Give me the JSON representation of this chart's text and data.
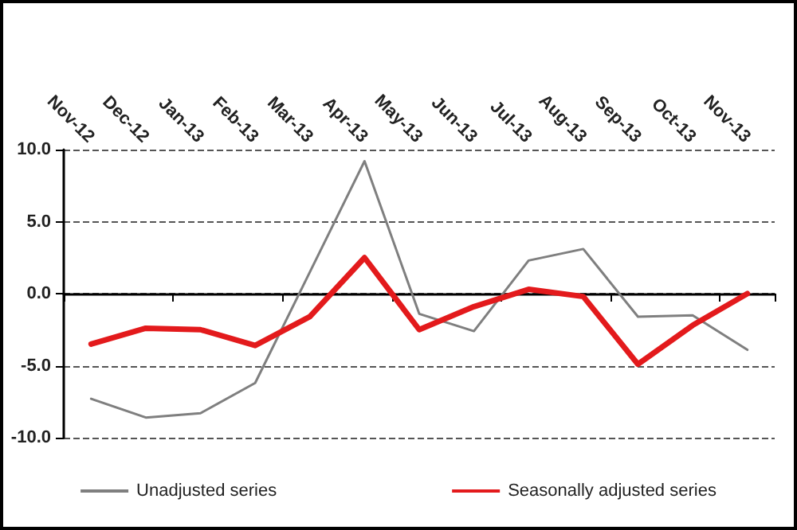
{
  "chart_data": {
    "type": "line",
    "categories": [
      "Nov-12",
      "Dec-12",
      "Jan-13",
      "Feb-13",
      "Mar-13",
      "Apr-13",
      "May-13",
      "Jun-13",
      "Jul-13",
      "Aug-13",
      "Sep-13",
      "Oct-13",
      "Nov-13"
    ],
    "series": [
      {
        "name": "Unadjusted series",
        "color": "#7f7f7f",
        "values": [
          -7.3,
          -8.6,
          -8.3,
          -6.2,
          1.5,
          9.2,
          -1.4,
          -2.6,
          2.3,
          3.1,
          -1.6,
          -1.5,
          -3.9
        ]
      },
      {
        "name": "Seasonally adjusted series",
        "color": "#e31a1c",
        "values": [
          -3.5,
          -2.4,
          -2.5,
          -3.6,
          -1.6,
          2.5,
          -2.5,
          -0.9,
          0.3,
          -0.2,
          -4.9,
          -2.2,
          0.0
        ]
      }
    ],
    "ylim": [
      -10,
      10
    ],
    "yticks": [
      {
        "value": -10,
        "label": "-10.0"
      },
      {
        "value": -5,
        "label": "-5.0"
      },
      {
        "value": 0,
        "label": "0.0"
      },
      {
        "value": 5,
        "label": "5.0"
      },
      {
        "value": 10,
        "label": "10.0"
      }
    ],
    "grid": "y",
    "legend": "bottom",
    "marker": "none",
    "line_style": "solid"
  }
}
